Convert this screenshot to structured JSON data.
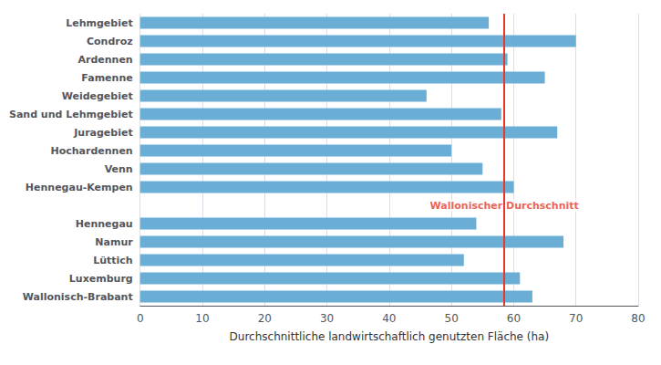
{
  "chart_data": {
    "type": "bar",
    "orientation": "horizontal",
    "categories": [
      "Wallonisch-Brabant",
      "Luxemburg",
      "Lüttich",
      "Namur",
      "Hennegau",
      null,
      "Hennegau-Kempen",
      "Venn",
      "Hochardennen",
      "Juragebiet",
      "Sand und Lehmgebiet",
      "Weidegebiet",
      "Famenne",
      "Ardennen",
      "Condroz",
      "Lehmgebiet"
    ],
    "values": [
      63,
      61,
      52,
      68,
      54,
      null,
      60,
      55,
      50,
      67,
      58,
      46,
      65,
      59,
      70,
      56
    ],
    "color": "#6aaed6",
    "xlabel": "Durchschnittliche landwirtschaftlich genutzten Fläche (ha)",
    "xlim": [
      0,
      80
    ],
    "xticks": [
      0,
      10,
      20,
      30,
      40,
      50,
      60,
      70,
      80
    ],
    "grid": true,
    "vline": {
      "x": 58.5,
      "label": "Wallonischer Durchschnitt",
      "color": "#e8372b"
    }
  }
}
